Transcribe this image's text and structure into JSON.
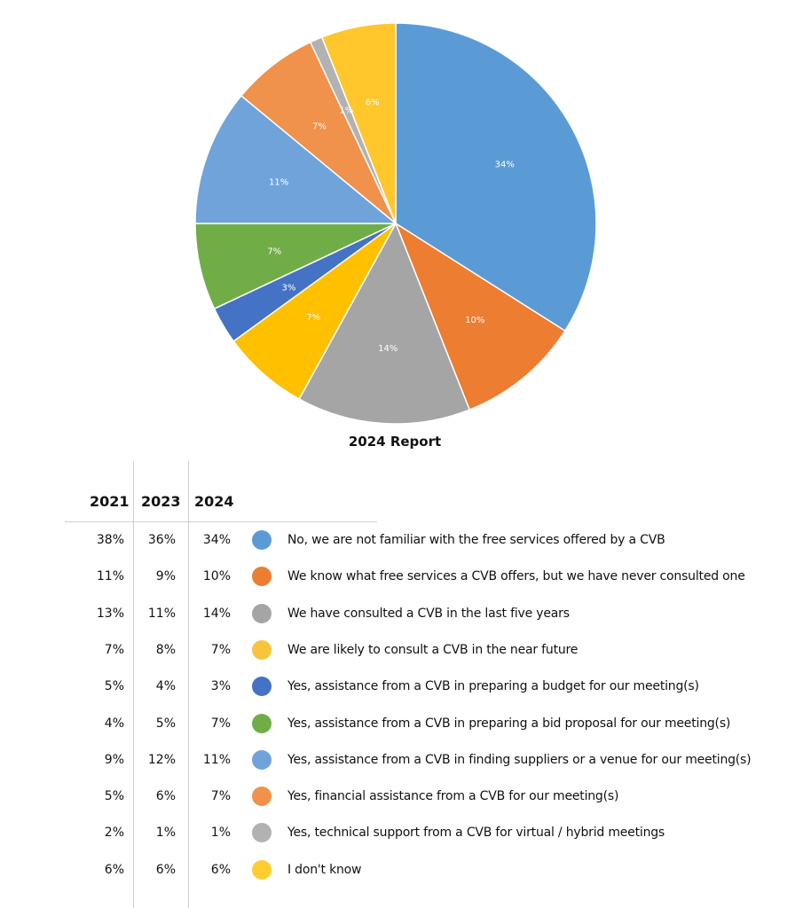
{
  "chart_data": {
    "type": "pie",
    "title": "2024 Report",
    "slices": [
      {
        "label": "34%",
        "value": 34,
        "color": "#5B9BD5"
      },
      {
        "label": "10%",
        "value": 10,
        "color": "#ED7D31"
      },
      {
        "label": "14%",
        "value": 14,
        "color": "#A5A5A5"
      },
      {
        "label": "7%",
        "value": 7,
        "color": "#FFC000"
      },
      {
        "label": "3%",
        "value": 3,
        "color": "#4472C4"
      },
      {
        "label": "7%",
        "value": 7,
        "color": "#70AD47"
      },
      {
        "label": "11%",
        "value": 11,
        "color": "#6FA3DA"
      },
      {
        "label": "7%",
        "value": 7,
        "color": "#F0914C"
      },
      {
        "label": "1%",
        "value": 1,
        "color": "#B2B2B2"
      },
      {
        "label": "6%",
        "value": 6,
        "color": "#FFC72C"
      }
    ]
  },
  "table": {
    "headers": [
      "2021",
      "2023",
      "2024"
    ],
    "rows": [
      {
        "v2021": "38%",
        "v2023": "36%",
        "v2024": "34%",
        "color": "#5B9BD5",
        "label": "No, we are not familiar with the free services offered by a CVB"
      },
      {
        "v2021": "11%",
        "v2023": "9%",
        "v2024": "10%",
        "color": "#ED7D31",
        "label": "We know what free services a CVB offers, but we have never consulted one"
      },
      {
        "v2021": "13%",
        "v2023": "11%",
        "v2024": "14%",
        "color": "#A5A5A5",
        "label": "We have consulted a CVB in the last five years"
      },
      {
        "v2021": "7%",
        "v2023": "8%",
        "v2024": "7%",
        "color": "#F8C43C",
        "label": "We are likely to consult a CVB in the near future"
      },
      {
        "v2021": "5%",
        "v2023": "4%",
        "v2024": "3%",
        "color": "#4472C4",
        "label": "Yes, assistance from a CVB in preparing a budget for our meeting(s)"
      },
      {
        "v2021": "4%",
        "v2023": "5%",
        "v2024": "7%",
        "color": "#70AD47",
        "label": "Yes, assistance from a CVB in preparing a bid proposal for our meeting(s)"
      },
      {
        "v2021": "9%",
        "v2023": "12%",
        "v2024": "11%",
        "color": "#6FA3DA",
        "label": "Yes, assistance from a CVB in finding suppliers or a venue for our meeting(s)"
      },
      {
        "v2021": "5%",
        "v2023": "6%",
        "v2024": "7%",
        "color": "#F0914C",
        "label": "Yes, financial assistance from a CVB for our meeting(s)"
      },
      {
        "v2021": "2%",
        "v2023": "1%",
        "v2024": "1%",
        "color": "#B2B2B2",
        "label": "Yes, technical support from a CVB for virtual / hybrid meetings"
      },
      {
        "v2021": "6%",
        "v2023": "6%",
        "v2024": "6%",
        "color": "#FFCD2E",
        "label": "I don't know"
      }
    ]
  }
}
